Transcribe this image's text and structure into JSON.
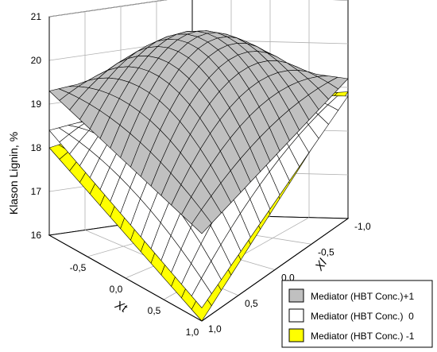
{
  "chart_data": {
    "type": "surface3d",
    "title": "",
    "xlabel": "Xt",
    "ylabel": "Xl",
    "zlabel": "Klason Lignin, %",
    "x_ticks": [
      "-0,5",
      "0,0",
      "0,5",
      "1,0"
    ],
    "y_ticks": [
      "-1,0",
      "-0,5",
      "0,0",
      "0,5",
      "1,0"
    ],
    "z_ticks": [
      "16",
      "17",
      "18",
      "19",
      "20",
      "21"
    ],
    "xlim": [
      -1,
      1
    ],
    "ylim": [
      -1,
      1
    ],
    "zlim": [
      16,
      21
    ],
    "grid": true,
    "legend_position": "bottom-right",
    "series": [
      {
        "name": "Mediator (HBT Conc.)+1",
        "color": "#c0c0c0",
        "corners": {
          "xt_min_xl_min": 19.6,
          "xt_min_xl_max": 19.3,
          "xt_max_xl_min": 19.2,
          "xt_max_xl_max": 18.0
        },
        "peak": 20.7
      },
      {
        "name": "Mediator (HBT Conc.)  0",
        "color": "#ffffff",
        "corners": {
          "xt_min_xl_min": 18.8,
          "xt_min_xl_max": 18.4,
          "xt_max_xl_min": 18.8,
          "xt_max_xl_max": 16.3
        },
        "peak": 19.7
      },
      {
        "name": "Mediator (HBT Conc.) -1",
        "color": "#ffff00",
        "corners": {
          "xt_min_xl_min": 18.6,
          "xt_min_xl_max": 18.0,
          "xt_max_xl_min": 18.9,
          "xt_max_xl_max": 16.0
        },
        "peak": 19.4
      }
    ]
  }
}
